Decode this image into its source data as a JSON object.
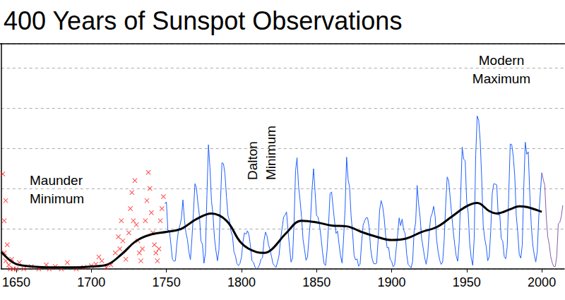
{
  "chart_data": {
    "type": "line",
    "title": "400 Years of Sunspot Observations",
    "annotations": [
      "Maunder Minimum",
      "Dalton Minimum",
      "Modern Maximum"
    ],
    "xlim": [
      1640,
      2015
    ],
    "xticks": [
      1650,
      1700,
      1750,
      1800,
      1850,
      1900,
      1950,
      2000
    ],
    "ylim": [
      0,
      280
    ],
    "yticks": [
      0,
      50,
      100,
      150,
      200,
      250
    ],
    "grid": true,
    "tick_labels": "x",
    "series": [
      {
        "type": "scatter",
        "color": "#ff2020",
        "marker": "x",
        "x": [
          1641,
          1642,
          1642,
          1643,
          1643,
          1644,
          1645,
          1646,
          1647,
          1648,
          1650,
          1652,
          1655,
          1660,
          1665,
          1670,
          1672,
          1676,
          1680,
          1684,
          1690,
          1695,
          1700,
          1703,
          1705,
          1707,
          1710,
          1713,
          1716,
          1718,
          1719,
          1720,
          1721,
          1723,
          1725,
          1726,
          1727,
          1728,
          1729,
          1730,
          1731,
          1732,
          1733,
          1734,
          1736,
          1737,
          1738,
          1739,
          1740,
          1741,
          1742,
          1743,
          1744,
          1745,
          1746,
          1747,
          1748
        ],
        "values": [
          118,
          60,
          20,
          10,
          85,
          30,
          5,
          0,
          12,
          0,
          0,
          8,
          0,
          3,
          0,
          5,
          0,
          3,
          0,
          8,
          0,
          2,
          4,
          6,
          15,
          10,
          2,
          5,
          20,
          40,
          25,
          60,
          35,
          12,
          45,
          75,
          95,
          60,
          110,
          55,
          35,
          20,
          10,
          25,
          60,
          85,
          120,
          100,
          70,
          45,
          30,
          20,
          10,
          25,
          60,
          75,
          90
        ]
      },
      {
        "type": "line",
        "color": "#2060ff",
        "line_style": "thin",
        "x": [
          1749,
          1750,
          1751,
          1752,
          1753,
          1754,
          1755,
          1756,
          1757,
          1758,
          1759,
          1760,
          1761,
          1762,
          1763,
          1764,
          1765,
          1766,
          1767,
          1768,
          1769,
          1770,
          1771,
          1772,
          1773,
          1774,
          1775,
          1776,
          1777,
          1778,
          1779,
          1780,
          1781,
          1782,
          1783,
          1784,
          1785,
          1786,
          1787,
          1788,
          1789,
          1790,
          1791,
          1792,
          1793,
          1794,
          1795,
          1796,
          1797,
          1798,
          1799,
          1800,
          1801,
          1802,
          1803,
          1804,
          1805,
          1806,
          1807,
          1808,
          1809,
          1810,
          1811,
          1812,
          1813,
          1814,
          1815,
          1816,
          1817,
          1818,
          1819,
          1820,
          1821,
          1822,
          1823,
          1824,
          1825,
          1826,
          1827,
          1828,
          1829,
          1830,
          1831,
          1832,
          1833,
          1834,
          1835,
          1836,
          1837,
          1838,
          1839,
          1840,
          1841,
          1842,
          1843,
          1844,
          1845,
          1846,
          1847,
          1848,
          1849,
          1850,
          1851,
          1852,
          1853,
          1854,
          1855,
          1856,
          1857,
          1858,
          1859,
          1860,
          1861,
          1862,
          1863,
          1864,
          1865,
          1866,
          1867,
          1868,
          1869,
          1870,
          1871,
          1872,
          1873,
          1874,
          1875,
          1876,
          1877,
          1878,
          1879,
          1880,
          1881,
          1882,
          1883,
          1884,
          1885,
          1886,
          1887,
          1888,
          1889,
          1890,
          1891,
          1892,
          1893,
          1894,
          1895,
          1896,
          1897,
          1898,
          1899,
          1900,
          1901,
          1902,
          1903,
          1904,
          1905,
          1906,
          1907,
          1908,
          1909,
          1910,
          1911,
          1912,
          1913,
          1914,
          1915,
          1916,
          1917,
          1918,
          1919,
          1920,
          1921,
          1922,
          1923,
          1924,
          1925,
          1926,
          1927,
          1928,
          1929,
          1930,
          1931,
          1932,
          1933,
          1934,
          1935,
          1936,
          1937,
          1938,
          1939,
          1940,
          1941,
          1942,
          1943,
          1944,
          1945,
          1946,
          1947,
          1948,
          1949,
          1950,
          1951,
          1952,
          1953,
          1954,
          1955,
          1956,
          1957,
          1958,
          1959,
          1960,
          1961,
          1962,
          1963,
          1964,
          1965,
          1966,
          1967,
          1968,
          1969,
          1970,
          1971,
          1972,
          1973,
          1974,
          1975,
          1976,
          1977,
          1978,
          1979,
          1980,
          1981,
          1982,
          1983,
          1984,
          1985,
          1986,
          1987,
          1988,
          1989,
          1990,
          1991,
          1992,
          1993,
          1994,
          1995,
          1996,
          1997,
          1998,
          1999,
          2000
        ],
        "values": [
          80.9,
          83.4,
          47.7,
          47.8,
          30.7,
          12.2,
          9.6,
          10.2,
          32.4,
          47.6,
          54.0,
          62.9,
          85.9,
          61.2,
          45.1,
          36.4,
          20.9,
          11.4,
          37.8,
          69.8,
          106.1,
          100.8,
          81.6,
          66.5,
          34.8,
          30.6,
          7.0,
          19.8,
          92.5,
          154.4,
          125.9,
          84.8,
          68.1,
          38.5,
          22.8,
          10.2,
          24.1,
          82.9,
          132.0,
          130.9,
          118.1,
          89.9,
          66.6,
          60.0,
          46.9,
          41.0,
          21.3,
          16.0,
          6.4,
          4.1,
          6.8,
          14.5,
          34.0,
          45.0,
          43.1,
          47.5,
          42.2,
          28.1,
          10.1,
          8.1,
          2.5,
          0.0,
          1.4,
          5.0,
          12.2,
          13.9,
          35.4,
          45.8,
          41.0,
          30.1,
          23.9,
          15.6,
          6.6,
          4.0,
          1.8,
          8.5,
          16.6,
          36.3,
          49.6,
          64.2,
          67.0,
          70.9,
          47.8,
          27.5,
          8.5,
          13.2,
          56.9,
          121.5,
          138.3,
          103.2,
          85.7,
          64.6,
          36.7,
          24.2,
          10.7,
          15.0,
          40.1,
          61.5,
          98.5,
          124.7,
          96.3,
          66.6,
          64.5,
          54.1,
          39.0,
          20.6,
          6.7,
          4.3,
          22.7,
          54.8,
          93.8,
          95.8,
          77.2,
          59.1,
          44.0,
          47.0,
          30.5,
          16.3,
          7.3,
          37.6,
          74.0,
          139.0,
          111.2,
          101.6,
          66.2,
          44.7,
          17.0,
          11.3,
          12.4,
          3.4,
          6.0,
          32.3,
          54.3,
          59.7,
          63.7,
          63.5,
          52.2,
          25.4,
          13.1,
          6.8,
          6.3,
          7.1,
          35.6,
          73.0,
          85.1,
          78.0,
          64.0,
          41.8,
          26.2,
          26.7,
          12.1,
          9.5,
          2.7,
          5.0,
          24.4,
          42.0,
          63.5,
          53.8,
          62.0,
          48.5,
          43.9,
          18.6,
          5.7,
          3.6,
          1.4,
          9.6,
          47.4,
          57.1,
          103.9,
          80.6,
          63.6,
          37.6,
          26.1,
          14.2,
          5.8,
          16.7,
          44.3,
          63.9,
          69.0,
          77.8,
          64.9,
          35.7,
          21.2,
          11.1,
          5.7,
          8.7,
          36.1,
          79.7,
          114.4,
          109.6,
          88.8,
          67.8,
          47.5,
          30.6,
          16.3,
          9.6,
          33.2,
          92.6,
          151.6,
          136.3,
          134.7,
          83.9,
          69.4,
          31.5,
          13.9,
          4.4,
          38.0,
          141.7,
          190.2,
          184.8,
          159.0,
          112.3,
          53.9,
          37.6,
          27.9,
          10.2,
          15.1,
          47.0,
          93.8,
          105.9,
          105.5,
          104.5,
          66.6,
          68.9,
          38.0,
          34.5,
          15.5,
          12.6,
          27.5,
          92.5,
          155.4,
          154.6,
          140.4,
          115.9,
          66.6,
          45.9,
          17.9,
          13.4,
          29.4,
          100.2,
          157.6,
          142.6,
          145.7,
          94.3,
          54.6,
          29.9,
          17.5,
          8.6,
          21.5,
          64.3,
          93.3,
          119.6
        ]
      },
      {
        "type": "line",
        "color": "#8a5aa8",
        "line_style": "thin",
        "x": [
          2000,
          2001,
          2002,
          2003,
          2004,
          2005,
          2006,
          2007,
          2008,
          2009,
          2010,
          2011,
          2012,
          2013,
          2014
        ],
        "values": [
          119.6,
          111.0,
          104.0,
          64.0,
          40.0,
          30.0,
          15.0,
          7.5,
          2.9,
          3.1,
          16.0,
          56.0,
          58.0,
          65.0,
          79.0
        ]
      },
      {
        "type": "line",
        "color": "#000000",
        "line_style": "smooth",
        "x": [
          1640,
          1645,
          1650,
          1660,
          1670,
          1680,
          1690,
          1700,
          1710,
          1720,
          1730,
          1740,
          1750,
          1760,
          1770,
          1780,
          1790,
          1800,
          1810,
          1815,
          1820,
          1830,
          1840,
          1850,
          1860,
          1870,
          1880,
          1890,
          1900,
          1910,
          1920,
          1930,
          1940,
          1950,
          1957,
          1965,
          1970,
          1980,
          1985,
          1990,
          2000
        ],
        "values": [
          21,
          12,
          6,
          3,
          2,
          2,
          2,
          3,
          5,
          18,
          35,
          43,
          46,
          50,
          62,
          69,
          60,
          32,
          21,
          20,
          24,
          45,
          60,
          58,
          54,
          53,
          46,
          40,
          36,
          38,
          46,
          52,
          65,
          78,
          82,
          72,
          69,
          75,
          78,
          77,
          71
        ]
      }
    ]
  }
}
